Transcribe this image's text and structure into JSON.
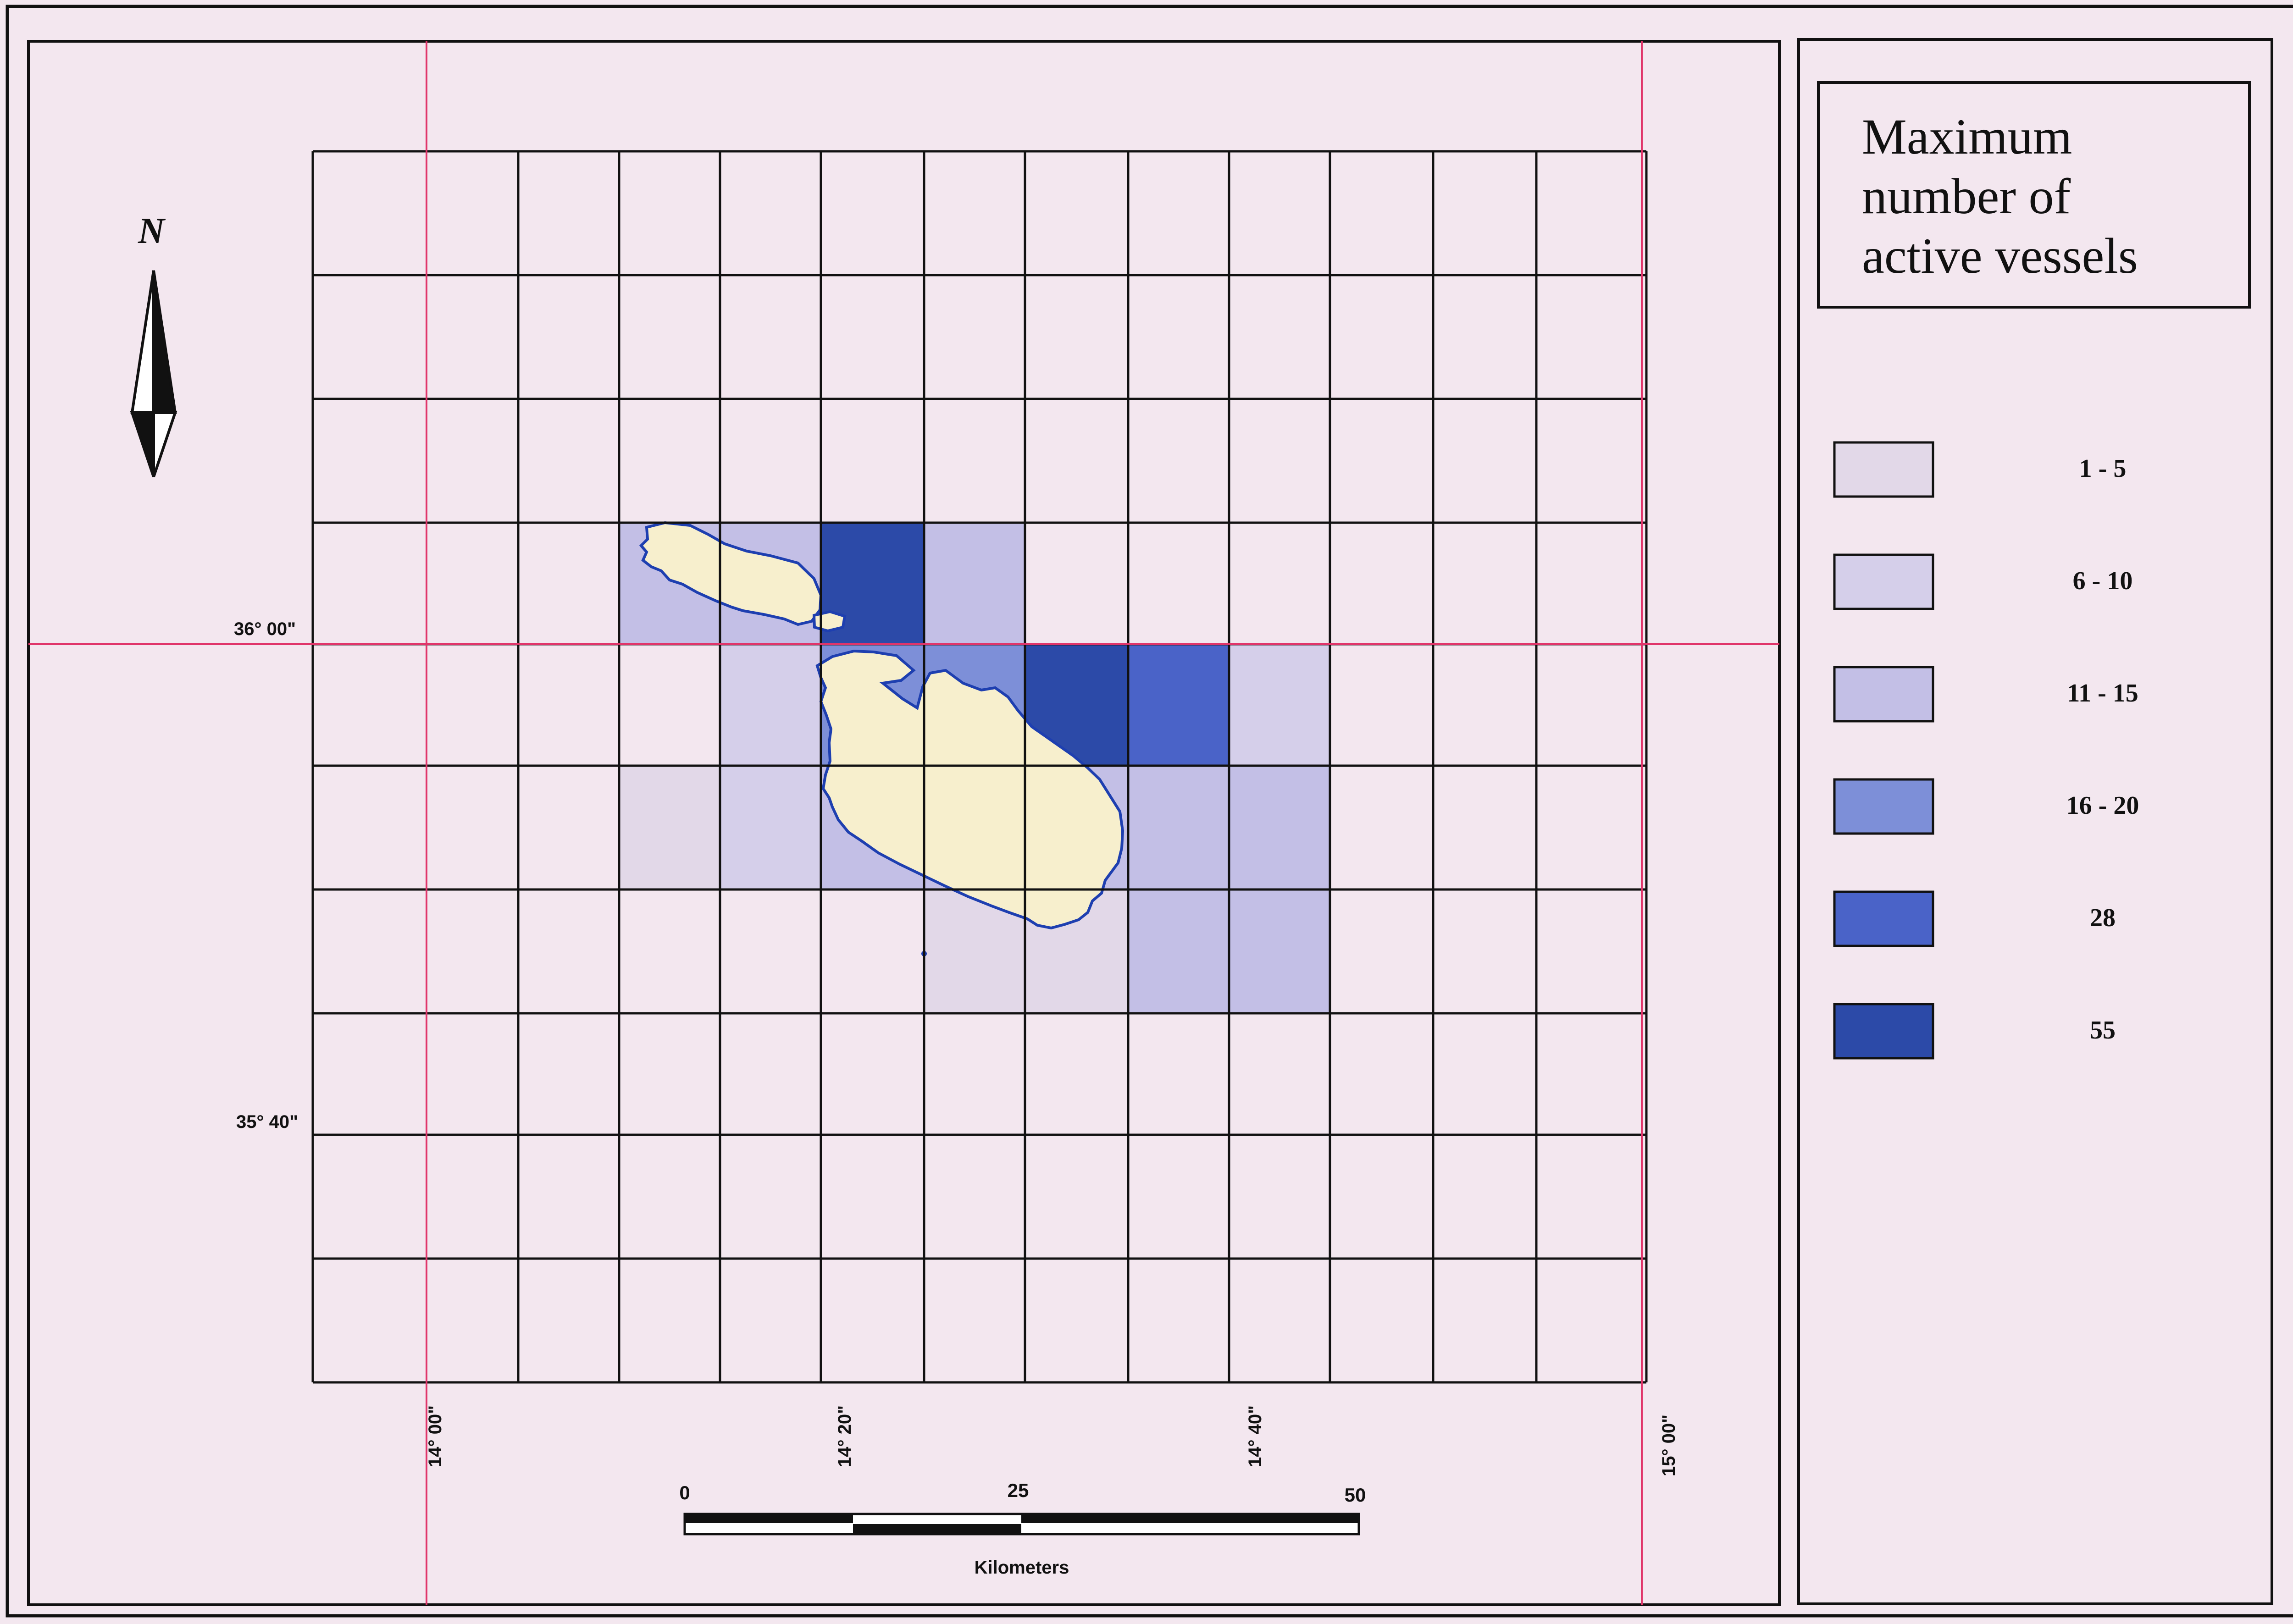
{
  "legend": {
    "title_lines": [
      "Maximum",
      "number of",
      "active vessels"
    ],
    "classes": [
      {
        "label": "1 - 5",
        "color": "#e2d8e8"
      },
      {
        "label": "6 - 10",
        "color": "#d5cfea"
      },
      {
        "label": "11 - 15",
        "color": "#c3bfe6"
      },
      {
        "label": "16 - 20",
        "color": "#7d8fd8"
      },
      {
        "label": "28",
        "color": "#4a63c8"
      },
      {
        "label": "55",
        "color": "#2c4aa8"
      }
    ]
  },
  "north_arrow": {
    "label": "N"
  },
  "latitude_labels": [
    "36° 00\"",
    "35° 40\""
  ],
  "longitude_labels": [
    "14° 00\"",
    "14° 20\"",
    "14° 40\"",
    "15° 00\""
  ],
  "scale_bar": {
    "ticks": [
      "0",
      "25",
      "50"
    ],
    "unit": "Kilometers"
  },
  "colors": {
    "background": "#f3e7ef",
    "grid_line": "#111111",
    "graticule": "#e0356a",
    "land": "#f7efcd",
    "coastline": "#1e3fb0"
  },
  "grid": {
    "rows": 10,
    "cols": 13,
    "cells": [
      {
        "r": 3,
        "c": 2,
        "class": 2
      },
      {
        "r": 3,
        "c": 3,
        "class": 2
      },
      {
        "r": 3,
        "c": 4,
        "class": 5
      },
      {
        "r": 3,
        "c": 5,
        "class": 2
      },
      {
        "r": 4,
        "c": 3,
        "class": 1
      },
      {
        "r": 4,
        "c": 4,
        "class": 3
      },
      {
        "r": 4,
        "c": 5,
        "class": 3
      },
      {
        "r": 4,
        "c": 6,
        "class": 5
      },
      {
        "r": 4,
        "c": 7,
        "class": 4
      },
      {
        "r": 4,
        "c": 8,
        "class": 1
      },
      {
        "r": 5,
        "c": 2,
        "class": 0
      },
      {
        "r": 5,
        "c": 3,
        "class": 1
      },
      {
        "r": 5,
        "c": 4,
        "class": 2
      },
      {
        "r": 5,
        "c": 5,
        "class": 2
      },
      {
        "r": 5,
        "c": 6,
        "class": 2
      },
      {
        "r": 5,
        "c": 7,
        "class": 2
      },
      {
        "r": 5,
        "c": 8,
        "class": 2
      },
      {
        "r": 6,
        "c": 5,
        "class": 0
      },
      {
        "r": 6,
        "c": 6,
        "class": 0
      },
      {
        "r": 6,
        "c": 7,
        "class": 2
      },
      {
        "r": 6,
        "c": 8,
        "class": 2
      }
    ]
  }
}
